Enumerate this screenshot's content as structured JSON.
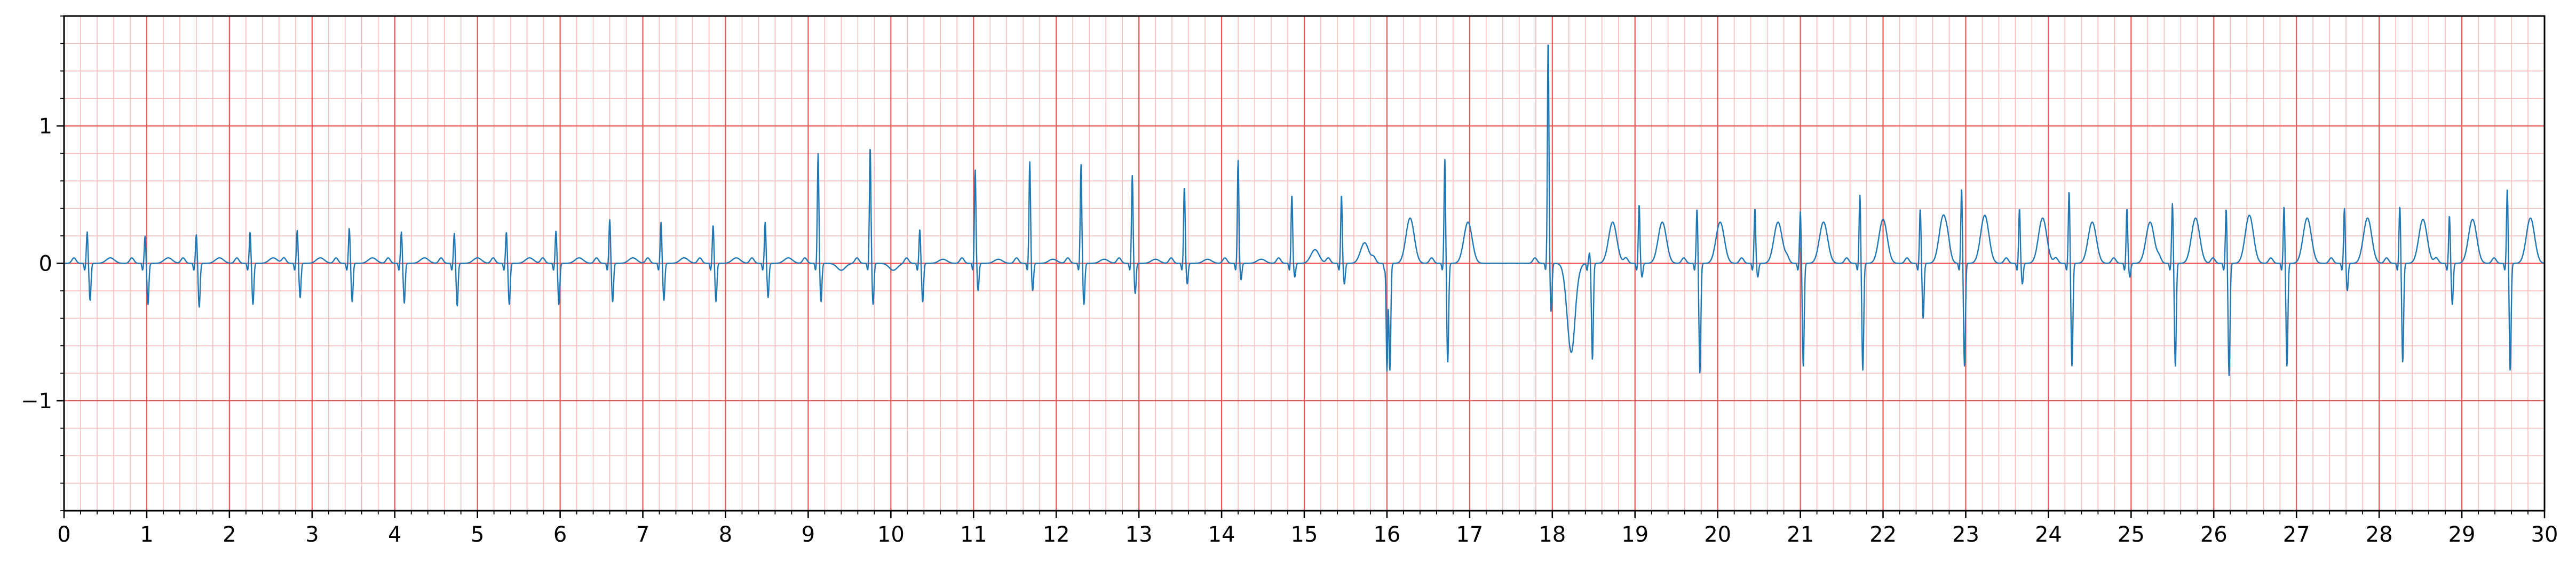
{
  "chart_data": {
    "type": "line",
    "title": "",
    "xlabel": "",
    "ylabel": "",
    "xlim": [
      0,
      30
    ],
    "ylim": [
      -1.8,
      1.8
    ],
    "x_ticks": [
      0,
      1,
      2,
      3,
      4,
      5,
      6,
      7,
      8,
      9,
      10,
      11,
      12,
      13,
      14,
      15,
      16,
      17,
      18,
      19,
      20,
      21,
      22,
      23,
      24,
      25,
      26,
      27,
      28,
      29,
      30
    ],
    "x_tick_labels": [
      "0",
      "1",
      "2",
      "3",
      "4",
      "5",
      "6",
      "7",
      "8",
      "9",
      "10",
      "11",
      "12",
      "13",
      "14",
      "15",
      "16",
      "17",
      "18",
      "19",
      "20",
      "21",
      "22",
      "23",
      "24",
      "25",
      "26",
      "27",
      "28",
      "29",
      "30"
    ],
    "y_ticks": [
      -1,
      0,
      1
    ],
    "y_tick_labels": [
      "−1",
      "0",
      "1"
    ],
    "grid": "ecg-paper (major every 1 s / 1.0, minor every 0.2 s / 0.2)",
    "series": [
      {
        "color": "#1f77b4",
        "beats": [
          {
            "t": 0.28,
            "r": 0.23,
            "s": -0.27,
            "t_wave": 0.04
          },
          {
            "t": 0.98,
            "r": 0.2,
            "s": -0.3,
            "t_wave": 0.04
          },
          {
            "t": 1.6,
            "r": 0.21,
            "s": -0.32,
            "t_wave": 0.04
          },
          {
            "t": 2.25,
            "r": 0.23,
            "s": -0.3,
            "t_wave": 0.04
          },
          {
            "t": 2.82,
            "r": 0.24,
            "s": -0.25,
            "t_wave": 0.04
          },
          {
            "t": 3.45,
            "r": 0.26,
            "s": -0.28,
            "t_wave": 0.04
          },
          {
            "t": 4.08,
            "r": 0.23,
            "s": -0.29,
            "t_wave": 0.04
          },
          {
            "t": 4.72,
            "r": 0.22,
            "s": -0.31,
            "t_wave": 0.04
          },
          {
            "t": 5.35,
            "r": 0.23,
            "s": -0.3,
            "t_wave": 0.04
          },
          {
            "t": 5.95,
            "r": 0.24,
            "s": -0.3,
            "t_wave": 0.04
          },
          {
            "t": 6.6,
            "r": 0.32,
            "s": -0.28,
            "t_wave": 0.04
          },
          {
            "t": 7.22,
            "r": 0.3,
            "s": -0.27,
            "t_wave": 0.04
          },
          {
            "t": 7.85,
            "r": 0.28,
            "s": -0.28,
            "t_wave": 0.04
          },
          {
            "t": 8.48,
            "r": 0.3,
            "s": -0.25,
            "t_wave": 0.04
          },
          {
            "t": 9.12,
            "r": 0.8,
            "s": -0.28,
            "t_wave": -0.05
          },
          {
            "t": 9.75,
            "r": 0.85,
            "s": -0.3,
            "t_wave": -0.05
          },
          {
            "t": 10.35,
            "r": 0.25,
            "s": -0.28,
            "t_wave": 0.03
          },
          {
            "t": 11.02,
            "r": 0.68,
            "s": -0.2,
            "t_wave": 0.03
          },
          {
            "t": 11.68,
            "r": 0.74,
            "s": -0.2,
            "t_wave": 0.03
          },
          {
            "t": 12.3,
            "r": 0.72,
            "s": -0.3,
            "t_wave": 0.03
          },
          {
            "t": 12.92,
            "r": 0.64,
            "s": -0.22,
            "t_wave": 0.03
          },
          {
            "t": 13.55,
            "r": 0.56,
            "s": -0.15,
            "t_wave": 0.03
          },
          {
            "t": 14.2,
            "r": 0.75,
            "s": -0.12,
            "t_wave": 0.03
          },
          {
            "t": 14.85,
            "r": 0.5,
            "s": -0.1,
            "t_wave": 0.1
          },
          {
            "t": 15.45,
            "r": 0.5,
            "s": -0.15,
            "t_wave": 0.15
          },
          {
            "t": 16.0,
            "r": -0.78,
            "s": -0.78,
            "t_wave": 0.33
          },
          {
            "t": 16.7,
            "r": 0.76,
            "s": -0.72,
            "t_wave": 0.3
          },
          {
            "t": 17.95,
            "r": 1.63,
            "s": -0.35,
            "t_wave": -0.65
          },
          {
            "t": 18.45,
            "r": 0.08,
            "s": -0.7,
            "t_wave": 0.3
          },
          {
            "t": 19.05,
            "r": 0.43,
            "s": -0.1,
            "t_wave": 0.3
          },
          {
            "t": 19.75,
            "r": 0.4,
            "s": -0.8,
            "t_wave": 0.3
          },
          {
            "t": 20.45,
            "r": 0.4,
            "s": -0.1,
            "t_wave": 0.3
          },
          {
            "t": 21.0,
            "r": 0.38,
            "s": -0.75,
            "t_wave": 0.3
          },
          {
            "t": 21.72,
            "r": 0.5,
            "s": -0.78,
            "t_wave": 0.32
          },
          {
            "t": 22.45,
            "r": 0.4,
            "s": -0.4,
            "t_wave": 0.35
          },
          {
            "t": 22.95,
            "r": 0.55,
            "s": -0.75,
            "t_wave": 0.35
          },
          {
            "t": 23.65,
            "r": 0.4,
            "s": -0.15,
            "t_wave": 0.33
          },
          {
            "t": 24.25,
            "r": 0.53,
            "s": -0.75,
            "t_wave": 0.3
          },
          {
            "t": 24.95,
            "r": 0.4,
            "s": -0.1,
            "t_wave": 0.3
          },
          {
            "t": 25.5,
            "r": 0.44,
            "s": -0.75,
            "t_wave": 0.33
          },
          {
            "t": 26.15,
            "r": 0.4,
            "s": -0.82,
            "t_wave": 0.35
          },
          {
            "t": 26.85,
            "r": 0.42,
            "s": -0.75,
            "t_wave": 0.33
          },
          {
            "t": 27.58,
            "r": 0.4,
            "s": -0.2,
            "t_wave": 0.33
          },
          {
            "t": 28.25,
            "r": 0.42,
            "s": -0.72,
            "t_wave": 0.32
          },
          {
            "t": 28.85,
            "r": 0.35,
            "s": -0.3,
            "t_wave": 0.32
          },
          {
            "t": 29.55,
            "r": 0.55,
            "s": -0.78,
            "t_wave": 0.33
          }
        ]
      }
    ]
  },
  "colors": {
    "major_grid": "#ee5555",
    "minor_grid": "#f8bcbc",
    "trace": "#1f77b4",
    "axes": "#000000"
  }
}
